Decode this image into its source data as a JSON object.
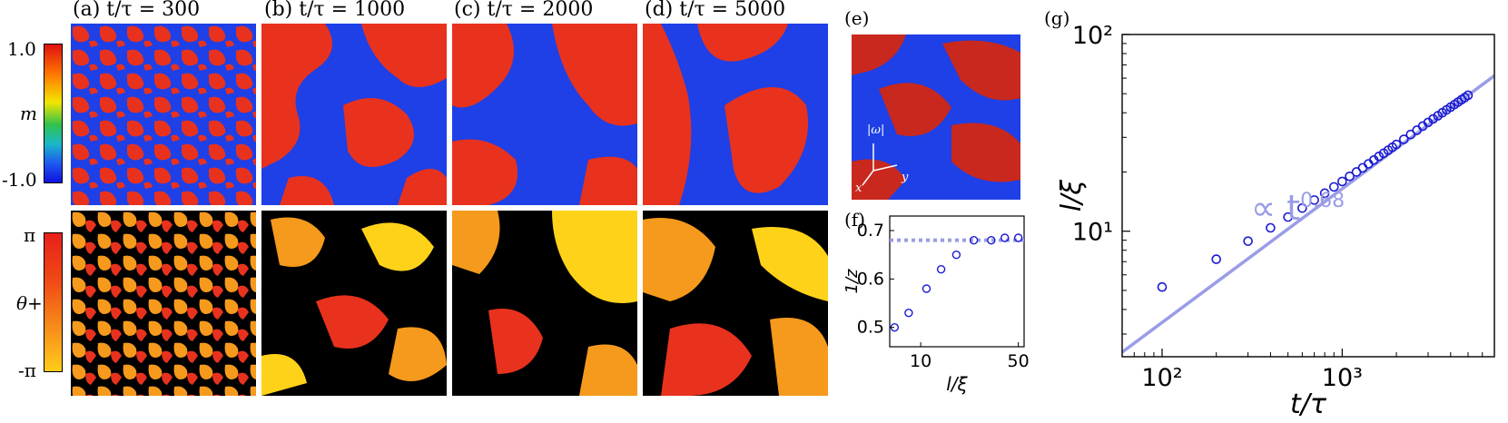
{
  "panels": {
    "a": "(a) t/τ = 300",
    "b": "(b) t/τ = 1000",
    "c": "(c) t/τ = 2000",
    "d": "(d) t/τ = 5000",
    "e": "(e)",
    "f": "(f)",
    "g": "(g)"
  },
  "colorbar_m": {
    "label": "m",
    "max": "1.0",
    "min": "-1.0"
  },
  "colorbar_theta": {
    "label": "θ+",
    "max": "π",
    "min": "-π"
  },
  "panel_e_axes": {
    "omega": "|ω|",
    "x": "x",
    "y": "y"
  },
  "colors": {
    "red": "#e8321e",
    "blue": "#1e40e6",
    "black": "#000000",
    "orange": "#f59a1c",
    "yellow": "#ffd21a",
    "fit_line": "#9a9ce8",
    "markers": "#1a1ad2"
  },
  "chart_data": [
    {
      "id": "f",
      "type": "scatter",
      "xlabel": "l/ξ",
      "ylabel": "1/z",
      "xticks": [
        "10",
        "50"
      ],
      "yticks": [
        "0.5",
        "0.6",
        "0.7"
      ],
      "xlim": [
        6,
        55
      ],
      "ylim": [
        0.46,
        0.73
      ],
      "x": [
        6.5,
        8.2,
        11,
        14,
        18,
        24,
        32,
        40,
        50
      ],
      "y": [
        0.5,
        0.53,
        0.58,
        0.62,
        0.65,
        0.68,
        0.68,
        0.685,
        0.685
      ],
      "reference_line": {
        "y": 0.68,
        "style": "dotted"
      }
    },
    {
      "id": "g",
      "type": "scatter",
      "xscale": "log",
      "yscale": "log",
      "xlabel": "t/τ",
      "ylabel": "l/ξ",
      "xlim": [
        60,
        7000
      ],
      "ylim": [
        2.3,
        100
      ],
      "xticks": [
        "10²",
        "10³"
      ],
      "yticks": [
        "10¹",
        "10²"
      ],
      "x": [
        100,
        200,
        300,
        400,
        500,
        600,
        700,
        800,
        900,
        1000,
        1100,
        1200,
        1300,
        1400,
        1500,
        1600,
        1700,
        1800,
        1900,
        2000,
        2200,
        2400,
        2600,
        2800,
        3000,
        3200,
        3400,
        3600,
        3800,
        4000,
        4200,
        4400,
        4600,
        4800,
        5000
      ],
      "y": [
        5.2,
        7.2,
        8.9,
        10.4,
        11.8,
        13.1,
        14.4,
        15.6,
        16.8,
        17.9,
        19.0,
        20.0,
        21.0,
        22.0,
        23.0,
        24.0,
        24.9,
        25.8,
        26.7,
        27.6,
        29.3,
        31.0,
        32.6,
        34.2,
        35.7,
        37.2,
        38.6,
        40.0,
        41.4,
        42.7,
        44.0,
        45.3,
        46.6,
        47.8,
        49.1
      ],
      "fit_label": "∝ t",
      "fit_exponent": "0.68"
    }
  ]
}
